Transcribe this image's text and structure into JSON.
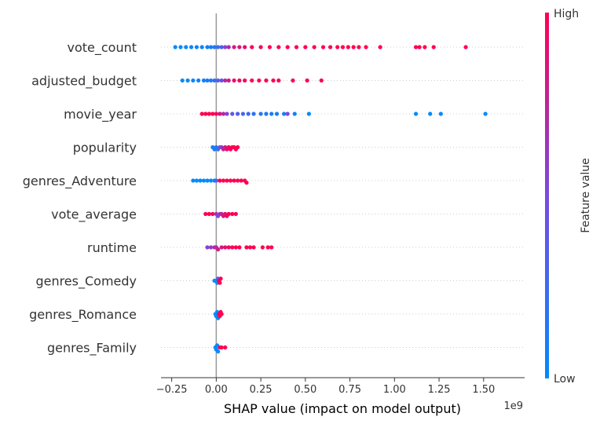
{
  "chart_data": {
    "type": "scatter",
    "subtype": "shap-beeswarm",
    "title": "",
    "xlabel": "SHAP value (impact on model output)",
    "x_offset_text": "1e9",
    "xlim": [
      -0.31,
      1.73
    ],
    "x_ticks": [
      -0.25,
      0.0,
      0.25,
      0.5,
      0.75,
      1.0,
      1.25,
      1.5
    ],
    "x_tick_labels": [
      "−0.25",
      "0.00",
      "0.25",
      "0.50",
      "0.75",
      "1.00",
      "1.25",
      "1.50"
    ],
    "features": [
      {
        "name": "vote_count",
        "x": [
          -0.23,
          -0.2,
          -0.17,
          -0.14,
          -0.11,
          -0.08,
          -0.05,
          -0.03,
          -0.01,
          0.01,
          0.03,
          0.05,
          0.07,
          0.1,
          0.13,
          0.16,
          0.2,
          0.25,
          0.3,
          0.35,
          0.4,
          0.45,
          0.5,
          0.55,
          0.6,
          0.64,
          0.68,
          0.71,
          0.74,
          0.77,
          0.8,
          0.84,
          0.92,
          1.12,
          1.14,
          1.17,
          1.22,
          1.4
        ],
        "value": [
          0.0,
          0.0,
          0.0,
          0.05,
          0.05,
          0.05,
          0.1,
          0.1,
          0.15,
          0.2,
          0.35,
          0.55,
          0.7,
          0.8,
          0.85,
          0.9,
          0.95,
          0.95,
          1.0,
          1.0,
          1.0,
          1.0,
          1.0,
          1.0,
          1.0,
          1.0,
          1.0,
          1.0,
          1.0,
          1.0,
          1.0,
          1.0,
          1.0,
          1.0,
          1.0,
          1.0,
          1.0,
          1.0
        ]
      },
      {
        "name": "adjusted_budget",
        "x": [
          -0.19,
          -0.16,
          -0.13,
          -0.1,
          -0.07,
          -0.05,
          -0.03,
          -0.01,
          0.01,
          0.03,
          0.05,
          0.07,
          0.1,
          0.13,
          0.16,
          0.2,
          0.24,
          0.28,
          0.32,
          0.35,
          0.43,
          0.51,
          0.59
        ],
        "value": [
          0.0,
          0.0,
          0.05,
          0.05,
          0.1,
          0.1,
          0.15,
          0.2,
          0.3,
          0.5,
          0.7,
          0.8,
          0.9,
          0.95,
          0.95,
          1.0,
          1.0,
          1.0,
          1.0,
          1.0,
          1.0,
          1.0,
          1.0
        ]
      },
      {
        "name": "movie_year",
        "x": [
          -0.08,
          -0.06,
          -0.04,
          -0.02,
          0.0,
          0.02,
          0.04,
          0.06,
          0.09,
          0.12,
          0.15,
          0.18,
          0.21,
          0.25,
          0.28,
          0.31,
          0.34,
          0.38,
          0.4,
          0.44,
          0.52,
          1.12,
          1.2,
          1.26,
          1.51
        ],
        "value": [
          1.0,
          1.0,
          1.0,
          1.0,
          0.95,
          0.85,
          0.7,
          0.55,
          0.4,
          0.35,
          0.3,
          0.25,
          0.2,
          0.15,
          0.15,
          0.1,
          0.1,
          0.1,
          0.5,
          0.05,
          0.0,
          0.0,
          0.0,
          0.0,
          0.0
        ]
      },
      {
        "name": "popularity",
        "x": [
          -0.02,
          -0.01,
          0.0,
          0.01,
          0.02,
          0.03,
          0.04,
          0.05,
          0.06,
          0.07,
          0.08,
          0.09,
          0.1,
          0.11,
          0.12
        ],
        "value": [
          0.1,
          0.1,
          0.15,
          0.2,
          0.4,
          0.6,
          0.75,
          0.85,
          0.9,
          0.95,
          1.0,
          1.0,
          1.0,
          1.0,
          1.0
        ]
      },
      {
        "name": "genres_Adventure",
        "x": [
          -0.13,
          -0.11,
          -0.09,
          -0.07,
          -0.05,
          -0.03,
          -0.01,
          0.0,
          0.02,
          0.04,
          0.06,
          0.08,
          0.1,
          0.12,
          0.14,
          0.16,
          0.17
        ],
        "value": [
          0.0,
          0.0,
          0.0,
          0.0,
          0.0,
          0.0,
          0.0,
          0.3,
          1.0,
          1.0,
          1.0,
          1.0,
          1.0,
          1.0,
          1.0,
          1.0,
          1.0
        ]
      },
      {
        "name": "vote_average",
        "x": [
          -0.06,
          -0.04,
          -0.02,
          0.0,
          0.01,
          0.02,
          0.03,
          0.04,
          0.05,
          0.06,
          0.07,
          0.09,
          0.11
        ],
        "value": [
          1.0,
          1.0,
          0.95,
          0.7,
          0.5,
          0.6,
          0.75,
          0.85,
          0.9,
          0.95,
          1.0,
          1.0,
          1.0
        ]
      },
      {
        "name": "runtime",
        "x": [
          -0.05,
          -0.03,
          -0.01,
          0.0,
          0.01,
          0.03,
          0.05,
          0.07,
          0.09,
          0.11,
          0.13,
          0.17,
          0.19,
          0.21,
          0.26,
          0.29,
          0.31
        ],
        "value": [
          0.55,
          0.6,
          0.7,
          0.75,
          0.8,
          0.85,
          0.9,
          0.95,
          1.0,
          1.0,
          1.0,
          1.0,
          1.0,
          1.0,
          1.0,
          1.0,
          1.0
        ]
      },
      {
        "name": "genres_Comedy",
        "x": [
          -0.01,
          0.0,
          0.005,
          0.01,
          0.015,
          0.02,
          0.025
        ],
        "value": [
          0.0,
          0.0,
          0.0,
          0.3,
          1.0,
          1.0,
          1.0
        ]
      },
      {
        "name": "genres_Romance",
        "x": [
          -0.005,
          0.0,
          0.005,
          0.01,
          0.015,
          0.02,
          0.025,
          0.03
        ],
        "value": [
          0.0,
          0.0,
          0.0,
          0.0,
          1.0,
          1.0,
          1.0,
          1.0
        ]
      },
      {
        "name": "genres_Family",
        "x": [
          -0.005,
          0.0,
          0.005,
          0.01,
          0.02,
          0.03,
          0.05
        ],
        "value": [
          0.0,
          0.0,
          0.0,
          0.0,
          1.0,
          1.0,
          1.0
        ]
      }
    ],
    "colorbar": {
      "label": "Feature value",
      "high_label": "High",
      "low_label": "Low",
      "low_color": "#008bfb",
      "high_color": "#ff0052"
    },
    "zero_line_color": "#999999",
    "grid": "dotted horizontal row lines"
  }
}
